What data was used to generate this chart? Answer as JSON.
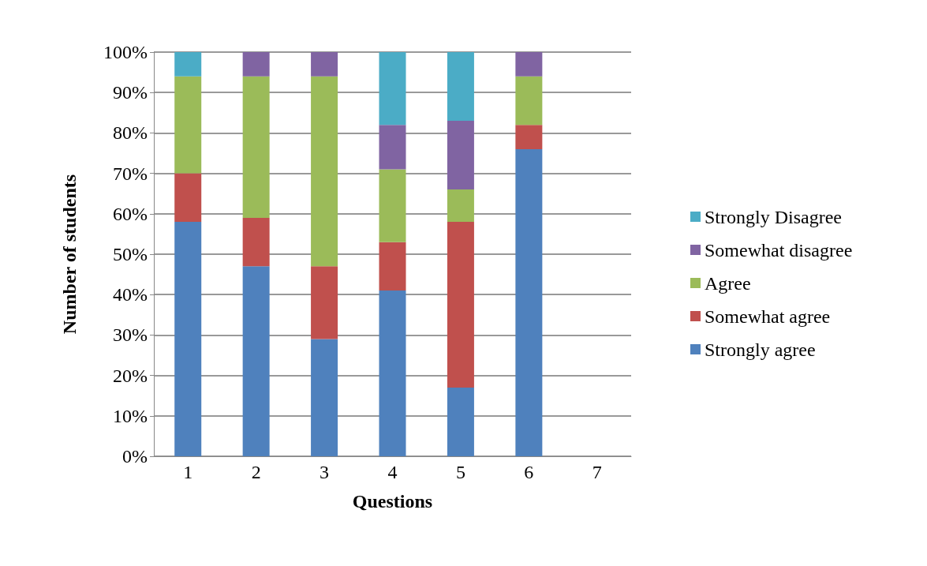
{
  "chart_data": {
    "type": "bar",
    "stacked": true,
    "xlabel": "Questions",
    "ylabel": "Number of students",
    "categories": [
      "1",
      "2",
      "3",
      "4",
      "5",
      "6",
      "7"
    ],
    "series": [
      {
        "name": "Strongly agree",
        "color": "#4f81bd",
        "values": [
          58,
          47,
          29,
          41,
          17,
          76,
          null
        ]
      },
      {
        "name": "Somewhat agree",
        "color": "#c0504d",
        "values": [
          12,
          12,
          18,
          12,
          41,
          6,
          null
        ]
      },
      {
        "name": "Agree",
        "color": "#9bbb59",
        "values": [
          24,
          35,
          47,
          18,
          8,
          12,
          null
        ]
      },
      {
        "name": "Somewhat disagree",
        "color": "#8064a2",
        "values": [
          0,
          6,
          6,
          11,
          17,
          6,
          null
        ]
      },
      {
        "name": "Strongly Disagree",
        "color": "#4bacc6",
        "values": [
          6,
          0,
          0,
          18,
          17,
          0,
          null
        ]
      }
    ],
    "ylim": [
      0,
      100
    ],
    "yticks": [
      {
        "value": 0,
        "label": "0%"
      },
      {
        "value": 10,
        "label": "10%"
      },
      {
        "value": 20,
        "label": "20%"
      },
      {
        "value": 30,
        "label": "30%"
      },
      {
        "value": 40,
        "label": "40%"
      },
      {
        "value": 50,
        "label": "50%"
      },
      {
        "value": 60,
        "label": "60%"
      },
      {
        "value": 70,
        "label": "70%"
      },
      {
        "value": 80,
        "label": "80%"
      },
      {
        "value": 90,
        "label": "90%"
      },
      {
        "value": 100,
        "label": "100%"
      }
    ],
    "grid": "y",
    "legend": "right"
  }
}
